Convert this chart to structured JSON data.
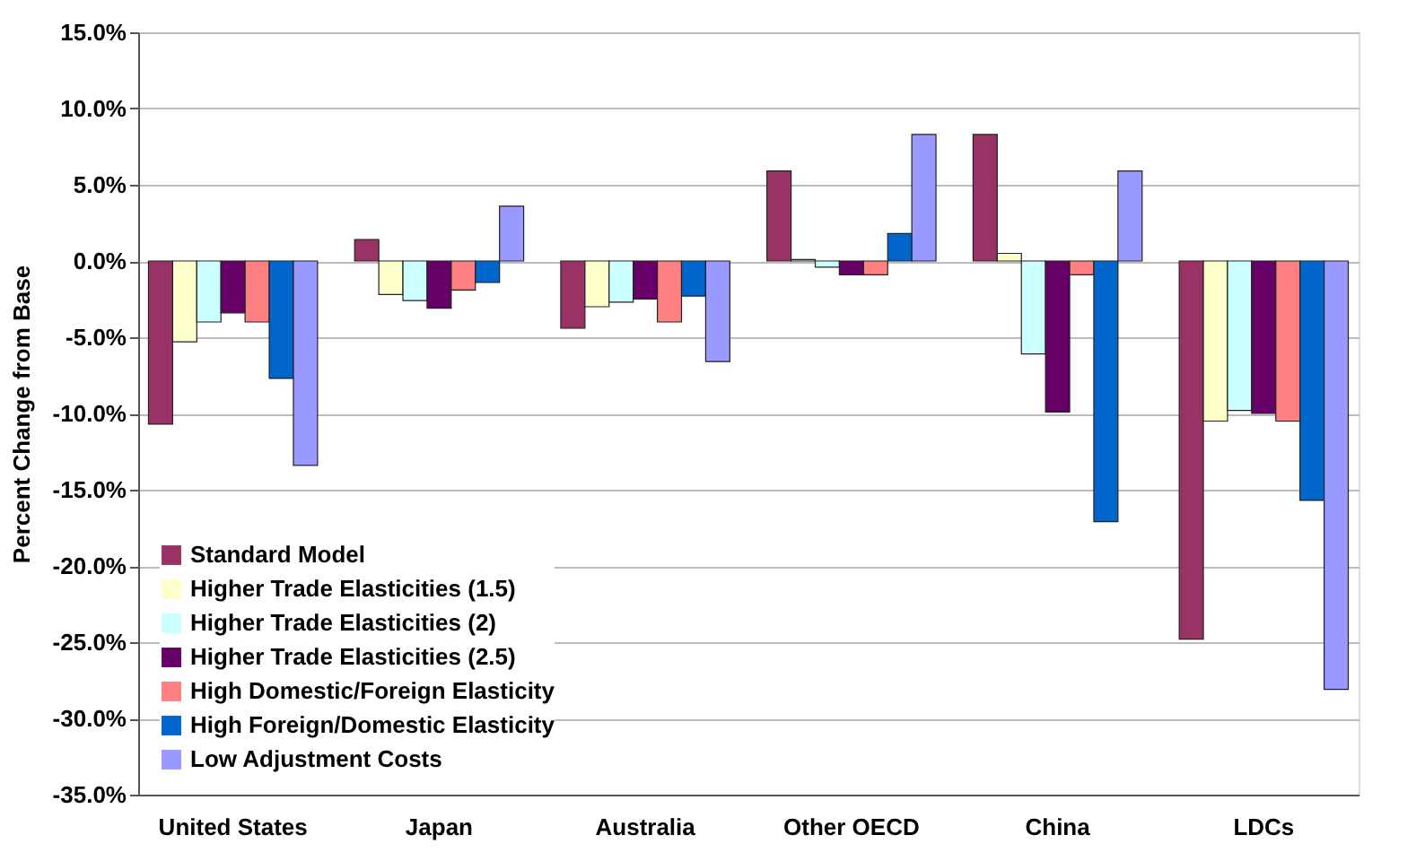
{
  "chart_data": {
    "type": "bar",
    "ylabel": "Percent Change from Base",
    "categories": [
      "United States",
      "Japan",
      "Australia",
      "Other OECD",
      "China",
      "LDCs"
    ],
    "series": [
      {
        "name": "Standard Model",
        "color": "#993366",
        "values": [
          -10.7,
          1.4,
          -4.4,
          5.9,
          8.3,
          -24.8
        ]
      },
      {
        "name": "Higher Trade Elasticities (1.5)",
        "color": "#ffffcc",
        "values": [
          -5.3,
          -2.2,
          -3.0,
          0.1,
          0.5,
          -10.5
        ]
      },
      {
        "name": "Higher Trade Elasticities (2)",
        "color": "#ccffff",
        "values": [
          -4.0,
          -2.6,
          -2.7,
          -0.4,
          -6.1,
          -9.8
        ]
      },
      {
        "name": "Higher Trade Elasticities (2.5)",
        "color": "#660066",
        "values": [
          -3.4,
          -3.1,
          -2.5,
          -0.9,
          -9.9,
          -10.0
        ]
      },
      {
        "name": "High Domestic/Foreign Elasticity",
        "color": "#ff8080",
        "values": [
          -4.0,
          -1.9,
          -4.0,
          -0.9,
          -0.9,
          -10.5
        ]
      },
      {
        "name": "High Foreign/Domestic Elasticity",
        "color": "#0066cc",
        "values": [
          -7.7,
          -1.4,
          -2.3,
          1.8,
          -17.1,
          -15.7
        ]
      },
      {
        "name": "Low Adjustment Costs",
        "color": "#9999ff",
        "values": [
          -13.4,
          3.6,
          -6.6,
          8.3,
          5.9,
          -28.1
        ]
      }
    ],
    "ylim": [
      -35,
      15
    ],
    "yticks": [
      {
        "value": -35,
        "label": "-35.0%"
      },
      {
        "value": -30,
        "label": "-30.0%"
      },
      {
        "value": -25,
        "label": "-25.0%"
      },
      {
        "value": -20,
        "label": "-20.0%"
      },
      {
        "value": -15,
        "label": "-15.0%"
      },
      {
        "value": -10,
        "label": "-10.0%"
      },
      {
        "value": -5,
        "label": "-5.0%"
      },
      {
        "value": 0,
        "label": "0.0%"
      },
      {
        "value": 5,
        "label": "5.0%"
      },
      {
        "value": 10,
        "label": "10.0%"
      },
      {
        "value": 15,
        "label": "15.0%"
      }
    ],
    "grid": "y",
    "legend": "bottom left"
  }
}
